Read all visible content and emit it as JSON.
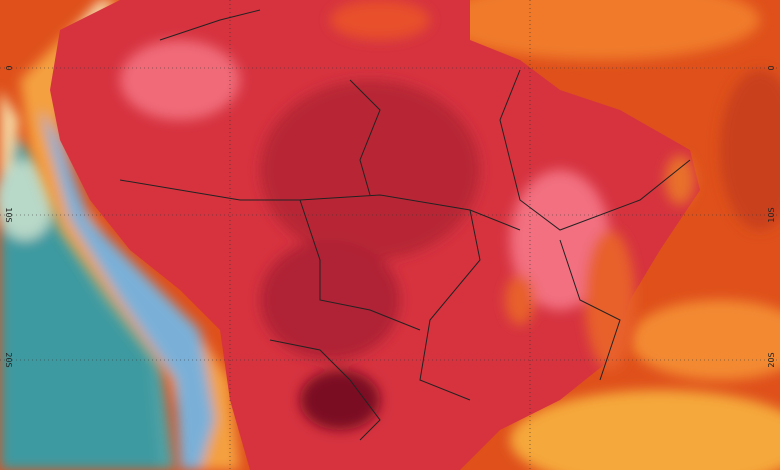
{
  "map": {
    "left_labels": [
      "0",
      "10S",
      "20S"
    ],
    "right_labels": [
      "0",
      "10S",
      "20S"
    ]
  }
}
